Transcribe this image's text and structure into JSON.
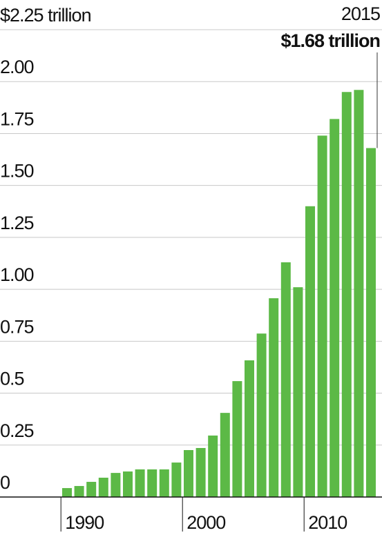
{
  "chart_data": {
    "type": "bar",
    "x": [
      1990,
      1991,
      1992,
      1993,
      1994,
      1995,
      1996,
      1997,
      1998,
      1999,
      2000,
      2001,
      2002,
      2003,
      2004,
      2005,
      2006,
      2007,
      2008,
      2009,
      2010,
      2011,
      2012,
      2013,
      2014,
      2015
    ],
    "values": [
      0.043,
      0.053,
      0.073,
      0.093,
      0.116,
      0.123,
      0.133,
      0.133,
      0.133,
      0.166,
      0.226,
      0.236,
      0.296,
      0.405,
      0.558,
      0.658,
      0.787,
      0.957,
      1.13,
      1.01,
      1.4,
      1.74,
      1.82,
      1.95,
      1.96,
      1.68
    ],
    "value_labels": [
      null,
      null,
      null,
      null,
      null,
      null,
      null,
      null,
      null,
      null,
      null,
      null,
      null,
      null,
      null,
      null,
      null,
      null,
      null,
      null,
      null,
      null,
      null,
      null,
      null,
      "$1.68 trillion"
    ],
    "color": "#5cb946",
    "ylim": [
      0,
      2.25
    ],
    "yticks": [
      0,
      0.25,
      0.5,
      0.75,
      {
        "value": 1,
        "label": "1.00"
      },
      1.25,
      {
        "value": 1.5,
        "label": "1.50"
      },
      1.75,
      {
        "value": 2,
        "label": "2.00"
      },
      {
        "value": 2.25,
        "label": "$2.25 trillion"
      }
    ],
    "xticks": [
      1990,
      2000,
      2010
    ],
    "grid": true
  }
}
